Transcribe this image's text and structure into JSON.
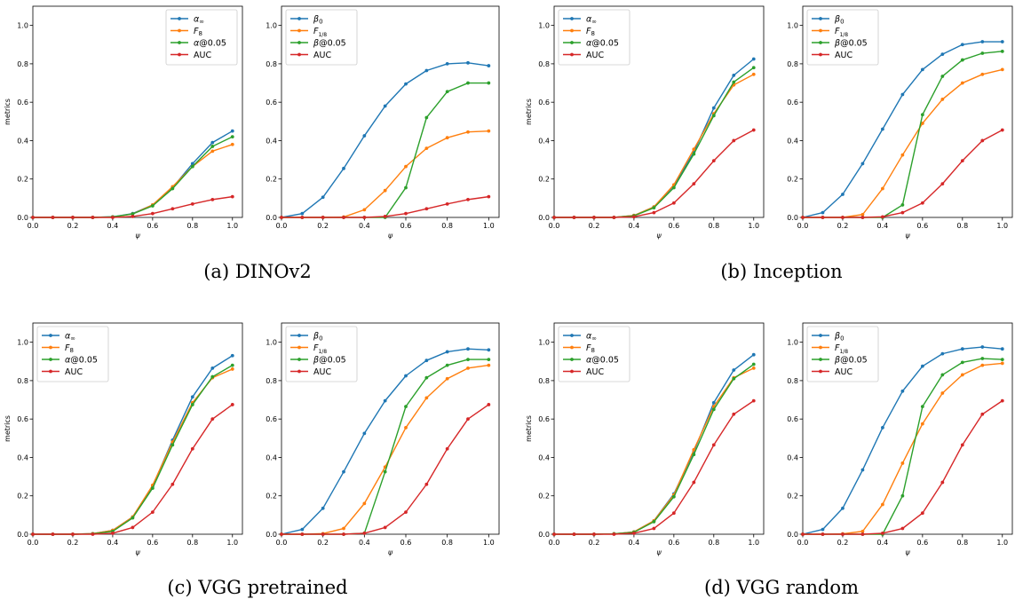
{
  "colors": {
    "blue": "#1f77b4",
    "orange": "#ff7f0e",
    "green": "#2ca02c",
    "red": "#d62728"
  },
  "captions": [
    "(a) DINOv2",
    "(b) Inception",
    "(c) VGG pretrained",
    "(d) VGG random"
  ],
  "chart_data": [
    {
      "type": "line",
      "panel": "(a) DINOv2 left",
      "title": "",
      "xlabel": "ψ",
      "ylabel": "metrics",
      "xlim": [
        0,
        1.05
      ],
      "ylim": [
        0,
        1.1
      ],
      "x_ticks": [
        "0.0",
        "0.2",
        "0.4",
        "0.6",
        "0.8",
        "1.0"
      ],
      "y_ticks": [
        "0.0",
        "0.2",
        "0.4",
        "0.6",
        "0.8",
        "1.0"
      ],
      "legend_position": "top-right",
      "grid": false,
      "x": [
        0.0,
        0.1,
        0.2,
        0.3,
        0.4,
        0.5,
        0.6,
        0.7,
        0.8,
        0.9,
        1.0
      ],
      "series": [
        {
          "name": "α∞",
          "color": "#1f77b4",
          "values": [
            0.0,
            0.0,
            0.0,
            0.0,
            0.003,
            0.02,
            0.065,
            0.155,
            0.28,
            0.39,
            0.45
          ]
        },
        {
          "name": "F8",
          "color": "#ff7f0e",
          "values": [
            0.0,
            0.0,
            0.0,
            0.0,
            0.002,
            0.018,
            0.065,
            0.16,
            0.265,
            0.345,
            0.38
          ]
        },
        {
          "name": "α@0.05",
          "color": "#2ca02c",
          "values": [
            0.0,
            0.0,
            0.0,
            0.0,
            0.003,
            0.018,
            0.06,
            0.15,
            0.265,
            0.37,
            0.42
          ]
        },
        {
          "name": "AUC",
          "color": "#d62728",
          "values": [
            0.0,
            0.0,
            0.0,
            0.0,
            0.0,
            0.005,
            0.02,
            0.045,
            0.07,
            0.093,
            0.108
          ]
        }
      ]
    },
    {
      "type": "line",
      "panel": "(a) DINOv2 right",
      "title": "",
      "xlabel": "ψ",
      "ylabel": "",
      "xlim": [
        0,
        1.05
      ],
      "ylim": [
        0,
        1.1
      ],
      "x_ticks": [
        "0.0",
        "0.2",
        "0.4",
        "0.6",
        "0.8",
        "1.0"
      ],
      "y_ticks": [
        "0.0",
        "0.2",
        "0.4",
        "0.6",
        "0.8",
        "1.0"
      ],
      "legend_position": "top-left",
      "grid": false,
      "x": [
        0.0,
        0.1,
        0.2,
        0.3,
        0.4,
        0.5,
        0.6,
        0.7,
        0.8,
        0.9,
        1.0
      ],
      "series": [
        {
          "name": "β0",
          "color": "#1f77b4",
          "values": [
            0.0,
            0.02,
            0.105,
            0.255,
            0.425,
            0.58,
            0.695,
            0.765,
            0.8,
            0.805,
            0.79
          ]
        },
        {
          "name": "F1/8",
          "color": "#ff7f0e",
          "values": [
            0.0,
            0.0,
            0.0,
            0.002,
            0.04,
            0.14,
            0.265,
            0.36,
            0.415,
            0.445,
            0.45
          ]
        },
        {
          "name": "β@0.05",
          "color": "#2ca02c",
          "values": [
            0.0,
            0.0,
            0.0,
            0.0,
            0.0,
            0.0,
            0.155,
            0.52,
            0.655,
            0.7,
            0.7
          ]
        },
        {
          "name": "AUC",
          "color": "#d62728",
          "values": [
            0.0,
            0.0,
            0.0,
            0.0,
            0.0,
            0.005,
            0.02,
            0.045,
            0.07,
            0.093,
            0.108
          ]
        }
      ]
    },
    {
      "type": "line",
      "panel": "(b) Inception left",
      "title": "",
      "xlabel": "ψ",
      "ylabel": "metrics",
      "xlim": [
        0,
        1.05
      ],
      "ylim": [
        0,
        1.1
      ],
      "x_ticks": [
        "0.0",
        "0.2",
        "0.4",
        "0.6",
        "0.8",
        "1.0"
      ],
      "y_ticks": [
        "0.0",
        "0.2",
        "0.4",
        "0.6",
        "0.8",
        "1.0"
      ],
      "legend_position": "top-left",
      "grid": false,
      "x": [
        0.0,
        0.1,
        0.2,
        0.3,
        0.4,
        0.5,
        0.6,
        0.7,
        0.8,
        0.9,
        1.0
      ],
      "series": [
        {
          "name": "α∞",
          "color": "#1f77b4",
          "values": [
            0.0,
            0.0,
            0.0,
            0.0,
            0.01,
            0.055,
            0.165,
            0.34,
            0.57,
            0.74,
            0.825
          ]
        },
        {
          "name": "F8",
          "color": "#ff7f0e",
          "values": [
            0.0,
            0.0,
            0.0,
            0.0,
            0.01,
            0.055,
            0.17,
            0.355,
            0.54,
            0.69,
            0.745
          ]
        },
        {
          "name": "α@0.05",
          "color": "#2ca02c",
          "values": [
            0.0,
            0.0,
            0.0,
            0.0,
            0.008,
            0.05,
            0.155,
            0.33,
            0.53,
            0.705,
            0.78
          ]
        },
        {
          "name": "AUC",
          "color": "#d62728",
          "values": [
            0.0,
            0.0,
            0.0,
            0.0,
            0.003,
            0.025,
            0.075,
            0.175,
            0.295,
            0.4,
            0.455
          ]
        }
      ]
    },
    {
      "type": "line",
      "panel": "(b) Inception right",
      "title": "",
      "xlabel": "ψ",
      "ylabel": "",
      "xlim": [
        0,
        1.05
      ],
      "ylim": [
        0,
        1.1
      ],
      "x_ticks": [
        "0.0",
        "0.2",
        "0.4",
        "0.6",
        "0.8",
        "1.0"
      ],
      "y_ticks": [
        "0.0",
        "0.2",
        "0.4",
        "0.6",
        "0.8",
        "1.0"
      ],
      "legend_position": "top-left",
      "grid": false,
      "x": [
        0.0,
        0.1,
        0.2,
        0.3,
        0.4,
        0.5,
        0.6,
        0.7,
        0.8,
        0.9,
        1.0
      ],
      "series": [
        {
          "name": "β0",
          "color": "#1f77b4",
          "values": [
            0.0,
            0.025,
            0.12,
            0.28,
            0.46,
            0.64,
            0.77,
            0.85,
            0.9,
            0.915,
            0.915
          ]
        },
        {
          "name": "F1/8",
          "color": "#ff7f0e",
          "values": [
            0.0,
            0.0,
            0.0,
            0.015,
            0.15,
            0.325,
            0.49,
            0.615,
            0.7,
            0.745,
            0.77
          ]
        },
        {
          "name": "β@0.05",
          "color": "#2ca02c",
          "values": [
            0.0,
            0.0,
            0.0,
            0.0,
            0.0,
            0.065,
            0.535,
            0.735,
            0.82,
            0.855,
            0.865
          ]
        },
        {
          "name": "AUC",
          "color": "#d62728",
          "values": [
            0.0,
            0.0,
            0.0,
            0.0,
            0.003,
            0.025,
            0.075,
            0.175,
            0.295,
            0.4,
            0.455
          ]
        }
      ]
    },
    {
      "type": "line",
      "panel": "(c) VGG pretrained left",
      "title": "",
      "xlabel": "ψ",
      "ylabel": "metrics",
      "xlim": [
        0,
        1.05
      ],
      "ylim": [
        0,
        1.1
      ],
      "x_ticks": [
        "0.0",
        "0.2",
        "0.4",
        "0.6",
        "0.8",
        "1.0"
      ],
      "y_ticks": [
        "0.0",
        "0.2",
        "0.4",
        "0.6",
        "0.8",
        "1.0"
      ],
      "legend_position": "top-left",
      "grid": false,
      "x": [
        0.0,
        0.1,
        0.2,
        0.3,
        0.4,
        0.5,
        0.6,
        0.7,
        0.8,
        0.9,
        1.0
      ],
      "series": [
        {
          "name": "α∞",
          "color": "#1f77b4",
          "values": [
            0.0,
            0.0,
            0.0,
            0.003,
            0.02,
            0.09,
            0.25,
            0.49,
            0.715,
            0.865,
            0.93
          ]
        },
        {
          "name": "F8",
          "color": "#ff7f0e",
          "values": [
            0.0,
            0.0,
            0.0,
            0.003,
            0.02,
            0.09,
            0.255,
            0.48,
            0.685,
            0.815,
            0.86
          ]
        },
        {
          "name": "α@0.05",
          "color": "#2ca02c",
          "values": [
            0.0,
            0.0,
            0.0,
            0.002,
            0.015,
            0.085,
            0.24,
            0.465,
            0.675,
            0.82,
            0.88
          ]
        },
        {
          "name": "AUC",
          "color": "#d62728",
          "values": [
            0.0,
            0.0,
            0.0,
            0.0,
            0.005,
            0.035,
            0.115,
            0.26,
            0.445,
            0.6,
            0.675
          ]
        }
      ]
    },
    {
      "type": "line",
      "panel": "(c) VGG pretrained right",
      "title": "",
      "xlabel": "ψ",
      "ylabel": "",
      "xlim": [
        0,
        1.05
      ],
      "ylim": [
        0,
        1.1
      ],
      "x_ticks": [
        "0.0",
        "0.2",
        "0.4",
        "0.6",
        "0.8",
        "1.0"
      ],
      "y_ticks": [
        "0.0",
        "0.2",
        "0.4",
        "0.6",
        "0.8",
        "1.0"
      ],
      "legend_position": "top-left",
      "grid": false,
      "x": [
        0.0,
        0.1,
        0.2,
        0.3,
        0.4,
        0.5,
        0.6,
        0.7,
        0.8,
        0.9,
        1.0
      ],
      "series": [
        {
          "name": "β0",
          "color": "#1f77b4",
          "values": [
            0.0,
            0.025,
            0.135,
            0.325,
            0.525,
            0.695,
            0.825,
            0.905,
            0.95,
            0.965,
            0.96
          ]
        },
        {
          "name": "F1/8",
          "color": "#ff7f0e",
          "values": [
            0.0,
            0.0,
            0.003,
            0.03,
            0.16,
            0.35,
            0.555,
            0.71,
            0.81,
            0.865,
            0.88
          ]
        },
        {
          "name": "β@0.05",
          "color": "#2ca02c",
          "values": [
            0.0,
            0.0,
            0.0,
            0.0,
            0.005,
            0.325,
            0.665,
            0.815,
            0.88,
            0.91,
            0.91
          ]
        },
        {
          "name": "AUC",
          "color": "#d62728",
          "values": [
            0.0,
            0.0,
            0.0,
            0.0,
            0.005,
            0.035,
            0.115,
            0.26,
            0.445,
            0.6,
            0.675
          ]
        }
      ]
    },
    {
      "type": "line",
      "panel": "(d) VGG random left",
      "title": "",
      "xlabel": "ψ",
      "ylabel": "metrics",
      "xlim": [
        0,
        1.05
      ],
      "ylim": [
        0,
        1.1
      ],
      "x_ticks": [
        "0.0",
        "0.2",
        "0.4",
        "0.6",
        "0.8",
        "1.0"
      ],
      "y_ticks": [
        "0.0",
        "0.2",
        "0.4",
        "0.6",
        "0.8",
        "1.0"
      ],
      "legend_position": "top-left",
      "grid": false,
      "x": [
        0.0,
        0.1,
        0.2,
        0.3,
        0.4,
        0.5,
        0.6,
        0.7,
        0.8,
        0.9,
        1.0
      ],
      "series": [
        {
          "name": "α∞",
          "color": "#1f77b4",
          "values": [
            0.0,
            0.0,
            0.0,
            0.002,
            0.012,
            0.07,
            0.21,
            0.43,
            0.685,
            0.855,
            0.935
          ]
        },
        {
          "name": "F8",
          "color": "#ff7f0e",
          "values": [
            0.0,
            0.0,
            0.0,
            0.002,
            0.012,
            0.07,
            0.205,
            0.44,
            0.665,
            0.815,
            0.865
          ]
        },
        {
          "name": "α@0.05",
          "color": "#2ca02c",
          "values": [
            0.0,
            0.0,
            0.0,
            0.002,
            0.01,
            0.065,
            0.195,
            0.415,
            0.65,
            0.81,
            0.885
          ]
        },
        {
          "name": "AUC",
          "color": "#d62728",
          "values": [
            0.0,
            0.0,
            0.0,
            0.0,
            0.005,
            0.03,
            0.11,
            0.27,
            0.465,
            0.625,
            0.695
          ]
        }
      ]
    },
    {
      "type": "line",
      "panel": "(d) VGG random right",
      "title": "",
      "xlabel": "ψ",
      "ylabel": "",
      "xlim": [
        0,
        1.05
      ],
      "ylim": [
        0,
        1.1
      ],
      "x_ticks": [
        "0.0",
        "0.2",
        "0.4",
        "0.6",
        "0.8",
        "1.0"
      ],
      "y_ticks": [
        "0.0",
        "0.2",
        "0.4",
        "0.6",
        "0.8",
        "1.0"
      ],
      "legend_position": "top-left",
      "grid": false,
      "x": [
        0.0,
        0.1,
        0.2,
        0.3,
        0.4,
        0.5,
        0.6,
        0.7,
        0.8,
        0.9,
        1.0
      ],
      "series": [
        {
          "name": "β0",
          "color": "#1f77b4",
          "values": [
            0.0,
            0.025,
            0.135,
            0.335,
            0.555,
            0.745,
            0.875,
            0.94,
            0.965,
            0.975,
            0.965
          ]
        },
        {
          "name": "F1/8",
          "color": "#ff7f0e",
          "values": [
            0.0,
            0.0,
            0.002,
            0.015,
            0.155,
            0.37,
            0.575,
            0.735,
            0.83,
            0.88,
            0.89
          ]
        },
        {
          "name": "β@0.05",
          "color": "#2ca02c",
          "values": [
            0.0,
            0.0,
            0.0,
            0.0,
            0.0,
            0.2,
            0.665,
            0.83,
            0.895,
            0.915,
            0.91
          ]
        },
        {
          "name": "AUC",
          "color": "#d62728",
          "values": [
            0.0,
            0.0,
            0.0,
            0.0,
            0.005,
            0.03,
            0.11,
            0.27,
            0.465,
            0.625,
            0.695
          ]
        }
      ]
    }
  ]
}
